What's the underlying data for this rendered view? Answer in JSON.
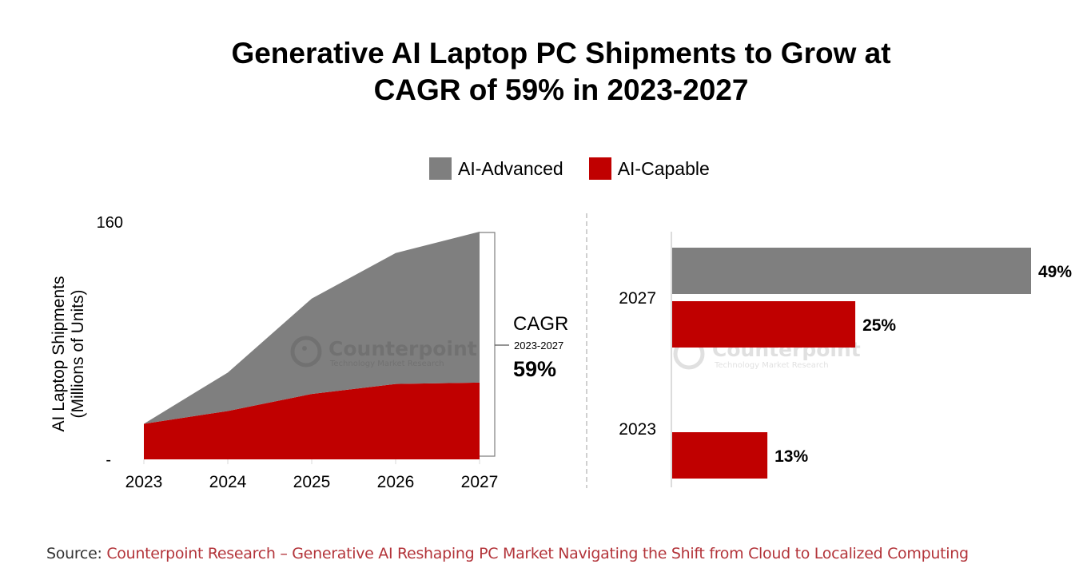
{
  "title_lines": [
    "Generative AI Laptop PC Shipments to Grow at",
    "CAGR of 59% in 2023-2027"
  ],
  "legend": [
    {
      "label": "AI-Advanced",
      "color": "#7f7f7f"
    },
    {
      "label": "AI-Capable",
      "color": "#c00000"
    }
  ],
  "colors": {
    "advanced": "#7f7f7f",
    "capable": "#c00000",
    "divider": "#d0d0d0",
    "source_link": "#b3343a"
  },
  "cagr": {
    "label": "CAGR",
    "period": "2023-2027",
    "value": "59%"
  },
  "watermark": {
    "name": "Counterpoint",
    "tagline": "Technology Market Research"
  },
  "source": {
    "prefix": "Source: ",
    "link_text": "Counterpoint Research – Generative AI Reshaping PC Market Navigating the Shift from Cloud to Localized Computing"
  },
  "chart_data": [
    {
      "type": "area",
      "stacked": true,
      "title": "",
      "xlabel": "",
      "ylabel": "AI Laptop Shipments (Millions of Units)",
      "ylabel_lines": [
        "AI Laptop Shipments",
        "(Millions of Units)"
      ],
      "x": [
        "2023",
        "2024",
        "2025",
        "2026",
        "2027"
      ],
      "y_ticks": [
        {
          "value": 0,
          "label": "-"
        },
        {
          "value": 160,
          "label": "160"
        }
      ],
      "ylim": [
        0,
        160
      ],
      "grid": false,
      "legend_position": "top-center",
      "series": [
        {
          "name": "AI-Capable",
          "values": [
            25,
            34,
            46,
            53,
            54
          ]
        },
        {
          "name": "AI-Advanced",
          "values": [
            0,
            27,
            67,
            92,
            106
          ]
        }
      ],
      "annotation": "CAGR 2023-2027 59%"
    },
    {
      "type": "bar",
      "orientation": "horizontal",
      "title": "",
      "xlabel": "",
      "ylabel": "",
      "categories": [
        "2027",
        "2023"
      ],
      "xlim": [
        0,
        50
      ],
      "grid": false,
      "series": [
        {
          "name": "AI-Advanced",
          "values": [
            49,
            null
          ],
          "labels": [
            "49%",
            ""
          ]
        },
        {
          "name": "AI-Capable",
          "values": [
            25,
            13
          ],
          "labels": [
            "25%",
            "13%"
          ]
        }
      ]
    }
  ]
}
